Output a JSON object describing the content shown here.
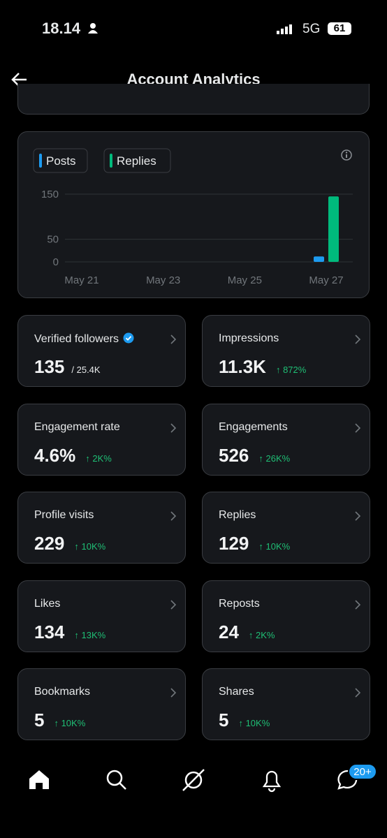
{
  "status_bar": {
    "time": "18.14",
    "network": "5G",
    "battery": "61"
  },
  "header": {
    "title": "Account Analytics"
  },
  "chart_data": {
    "type": "bar",
    "categories": [
      "May 21",
      null,
      "May 23",
      null,
      "May 25",
      null,
      "May 27"
    ],
    "series": [
      {
        "name": "Posts",
        "color": "#1d9bf0",
        "values": [
          0,
          0,
          0,
          0,
          0,
          0,
          12
        ]
      },
      {
        "name": "Replies",
        "color": "#00ba7c",
        "values": [
          0,
          0,
          0,
          0,
          0,
          0,
          145
        ]
      }
    ],
    "ylim": [
      0,
      150
    ],
    "yticks": [
      0,
      50,
      150
    ],
    "grid": true
  },
  "stats": [
    {
      "label": "Verified followers",
      "value": "135",
      "sub": "/ 25.4K"
    },
    {
      "label": "Impressions",
      "value": "11.3K",
      "change": "↑ 872%"
    },
    {
      "label": "Engagement rate",
      "value": "4.6%",
      "change": "↑ 2K%"
    },
    {
      "label": "Engagements",
      "value": "526",
      "change": "↑ 26K%"
    },
    {
      "label": "Profile visits",
      "value": "229",
      "change": "↑ 10K%"
    },
    {
      "label": "Replies",
      "value": "129",
      "change": "↑ 10K%"
    },
    {
      "label": "Likes",
      "value": "134",
      "change": "↑ 13K%"
    },
    {
      "label": "Reposts",
      "value": "24",
      "change": "↑ 2K%"
    },
    {
      "label": "Bookmarks",
      "value": "5",
      "change": "↑ 10K%"
    },
    {
      "label": "Shares",
      "value": "5",
      "change": "↑ 10K%"
    }
  ],
  "nav": {
    "badge": "20+"
  }
}
